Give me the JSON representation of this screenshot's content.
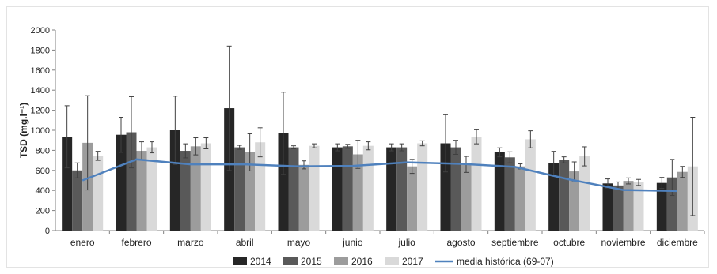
{
  "chart_data": {
    "type": "bar",
    "ylabel": "TSD (mg.l⁻¹)",
    "ylim": [
      0,
      2000
    ],
    "yticks": [
      "0",
      "200",
      "400",
      "600",
      "800",
      "1000",
      "1200",
      "1400",
      "1600",
      "1800",
      "2000"
    ],
    "grid": false,
    "legend_position": "bottom",
    "categories": [
      "enero",
      "febrero",
      "marzo",
      "abril",
      "mayo",
      "junio",
      "julio",
      "agosto",
      "septiembre",
      "octubre",
      "noviembre",
      "diciembre"
    ],
    "series": [
      {
        "name": "2014",
        "color": "#262626",
        "values": [
          935,
          955,
          1000,
          1220,
          970,
          830,
          830,
          870,
          780,
          670,
          470,
          475
        ],
        "errors": [
          310,
          175,
          340,
          620,
          410,
          35,
          35,
          285,
          45,
          120,
          45,
          55
        ]
      },
      {
        "name": "2015",
        "color": "#595959",
        "values": [
          600,
          980,
          795,
          830,
          830,
          840,
          830,
          830,
          730,
          705,
          450,
          530
        ],
        "errors": [
          75,
          355,
          70,
          20,
          15,
          20,
          35,
          70,
          55,
          30,
          35,
          180
        ]
      },
      {
        "name": "2016",
        "color": "#9c9c9c",
        "values": [
          875,
          795,
          840,
          780,
          655,
          760,
          640,
          660,
          640,
          590,
          495,
          585
        ],
        "errors": [
          470,
          90,
          85,
          185,
          40,
          140,
          70,
          80,
          25,
          95,
          30,
          55
        ]
      },
      {
        "name": "2017",
        "color": "#d9d9d9",
        "values": [
          745,
          830,
          870,
          880,
          845,
          845,
          870,
          935,
          910,
          740,
          480,
          640
        ],
        "errors": [
          45,
          55,
          55,
          145,
          20,
          40,
          25,
          70,
          85,
          95,
          30,
          490
        ]
      }
    ],
    "line": {
      "name": "media histórica (69-07)",
      "color": "#4f81bd",
      "values": [
        500,
        710,
        660,
        660,
        640,
        645,
        680,
        665,
        635,
        510,
        405,
        395
      ]
    }
  }
}
